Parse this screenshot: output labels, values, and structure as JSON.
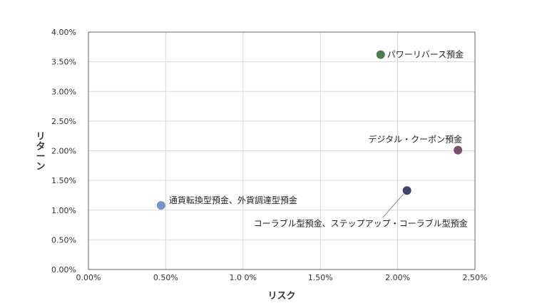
{
  "chart_data": {
    "type": "scatter",
    "title": "",
    "xlabel": "リスク",
    "ylabel": "リターン",
    "xlim": [
      0,
      0.025
    ],
    "ylim": [
      0,
      0.04
    ],
    "x_ticks": [
      0,
      0.005,
      0.01,
      0.015,
      0.02,
      0.025
    ],
    "x_tick_labels": [
      "0.00%",
      "0.50%",
      "1.0 0%",
      "1.50%",
      "2.00%",
      "2.50%"
    ],
    "y_ticks": [
      0,
      0.005,
      0.01,
      0.015,
      0.02,
      0.025,
      0.03,
      0.035,
      0.04
    ],
    "y_tick_labels": [
      "0.00%",
      "0.50%",
      "1.00%",
      "1.50%",
      "2.00%",
      "2.50%",
      "3.00%",
      "3.50%",
      "4.00%"
    ],
    "grid": true,
    "points": [
      {
        "label": "パワーリバース預金",
        "x": 0.0189,
        "y": 0.0362,
        "color": "#4a7c4e"
      },
      {
        "label": "デジタル・クーポン預金",
        "x": 0.0239,
        "y": 0.0201,
        "color": "#7a4e6e"
      },
      {
        "label": "通貨転換型預金、外貨調達型預金",
        "x": 0.0047,
        "y": 0.0108,
        "color": "#7b92c8"
      },
      {
        "label": "コーラブル型預金、ステップアップ・コーラブル型預金",
        "x": 0.0206,
        "y": 0.0133,
        "color": "#3d4566"
      }
    ]
  }
}
